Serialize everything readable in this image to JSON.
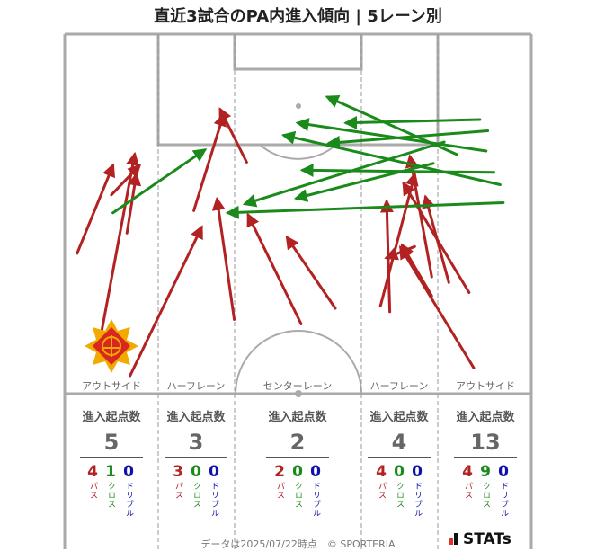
{
  "title": "直近3試合のPA内進入傾向 | 5レーン別",
  "lanes": [
    {
      "name": "アウトサイド",
      "stat_title": "進入起点数",
      "total": "5",
      "pass": "4",
      "cross": "1",
      "dribble": "0"
    },
    {
      "name": "ハーフレーン",
      "stat_title": "進入起点数",
      "total": "3",
      "pass": "3",
      "cross": "0",
      "dribble": "0"
    },
    {
      "name": "センターレーン",
      "stat_title": "進入起点数",
      "total": "2",
      "pass": "2",
      "cross": "0",
      "dribble": "0"
    },
    {
      "name": "ハーフレーン",
      "stat_title": "進入起点数",
      "total": "4",
      "pass": "4",
      "cross": "0",
      "dribble": "0"
    },
    {
      "name": "アウトサイド",
      "stat_title": "進入起点数",
      "total": "13",
      "pass": "4",
      "cross": "9",
      "dribble": "0"
    }
  ],
  "breakdown_labels": {
    "pass": "パス",
    "cross": "クロス",
    "dribble": "ドリブル"
  },
  "colors": {
    "pass": "#b22222",
    "cross": "#1a8a1a",
    "dribble": "#1010aa",
    "pitch_line": "#aaaaaa",
    "lane_divider": "#999999"
  },
  "footer": "データは2025/07/22時点　© SPORTERIA",
  "brand": "STATs",
  "club_crest": "club-crest-icon",
  "chart_data": {
    "type": "arrow-map",
    "arrows": [
      {
        "type": "pass",
        "from": [
          8,
          195
        ],
        "to": [
          31,
          117
        ]
      },
      {
        "type": "pass",
        "from": [
          23,
          270
        ],
        "to": [
          45,
          107
        ]
      },
      {
        "type": "pass",
        "from": [
          40,
          177
        ],
        "to": [
          46,
          125
        ]
      },
      {
        "type": "pass",
        "from": [
          30,
          143
        ],
        "to": [
          48,
          117
        ]
      },
      {
        "type": "cross",
        "from": [
          31,
          159
        ],
        "to": [
          90,
          103
        ]
      },
      {
        "type": "pass",
        "from": [
          42,
          304
        ],
        "to": [
          88,
          172
        ]
      },
      {
        "type": "pass",
        "from": [
          83,
          157
        ],
        "to": [
          102,
          72
        ]
      },
      {
        "type": "pass",
        "from": [
          109,
          254
        ],
        "to": [
          98,
          147
        ]
      },
      {
        "type": "pass",
        "from": [
          117,
          114
        ],
        "to": [
          100,
          67
        ]
      },
      {
        "type": "pass",
        "from": [
          174,
          244
        ],
        "to": [
          143,
          181
        ]
      },
      {
        "type": "pass",
        "from": [
          152,
          258
        ],
        "to": [
          118,
          161
        ]
      },
      {
        "type": "pass",
        "from": [
          209,
          247
        ],
        "to": [
          207,
          149
        ]
      },
      {
        "type": "pass",
        "from": [
          260,
          230
        ],
        "to": [
          218,
          133
        ]
      },
      {
        "type": "pass",
        "from": [
          247,
          221
        ],
        "to": [
          232,
          145
        ]
      },
      {
        "type": "pass",
        "from": [
          236,
          216
        ],
        "to": [
          222,
          109
        ]
      },
      {
        "type": "cross",
        "from": [
          271,
          104
        ],
        "to": [
          150,
          79
        ]
      },
      {
        "type": "cross",
        "from": [
          280,
          134
        ],
        "to": [
          141,
          90
        ]
      },
      {
        "type": "cross",
        "from": [
          276,
          123
        ],
        "to": [
          153,
          121
        ]
      },
      {
        "type": "cross",
        "from": [
          282,
          150
        ],
        "to": [
          105,
          159
        ]
      },
      {
        "type": "cross",
        "from": [
          272,
          86
        ],
        "to": [
          170,
          97
        ]
      },
      {
        "type": "cross",
        "from": [
          267,
          76
        ],
        "to": [
          181,
          79
        ]
      },
      {
        "type": "cross",
        "from": [
          244,
          96
        ],
        "to": [
          116,
          151
        ]
      },
      {
        "type": "cross",
        "from": [
          252,
          107
        ],
        "to": [
          169,
          56
        ]
      },
      {
        "type": "cross",
        "from": [
          237,
          115
        ],
        "to": [
          149,
          146
        ]
      },
      {
        "type": "pass",
        "from": [
          263,
          297
        ],
        "to": [
          216,
          190
        ]
      },
      {
        "type": "pass",
        "from": [
          225,
          189
        ],
        "to": [
          207,
          199
        ]
      },
      {
        "type": "pass",
        "from": [
          236,
          233
        ],
        "to": [
          217,
          188
        ]
      },
      {
        "type": "pass",
        "from": [
          203,
          242
        ],
        "to": [
          225,
          125
        ]
      }
    ]
  }
}
